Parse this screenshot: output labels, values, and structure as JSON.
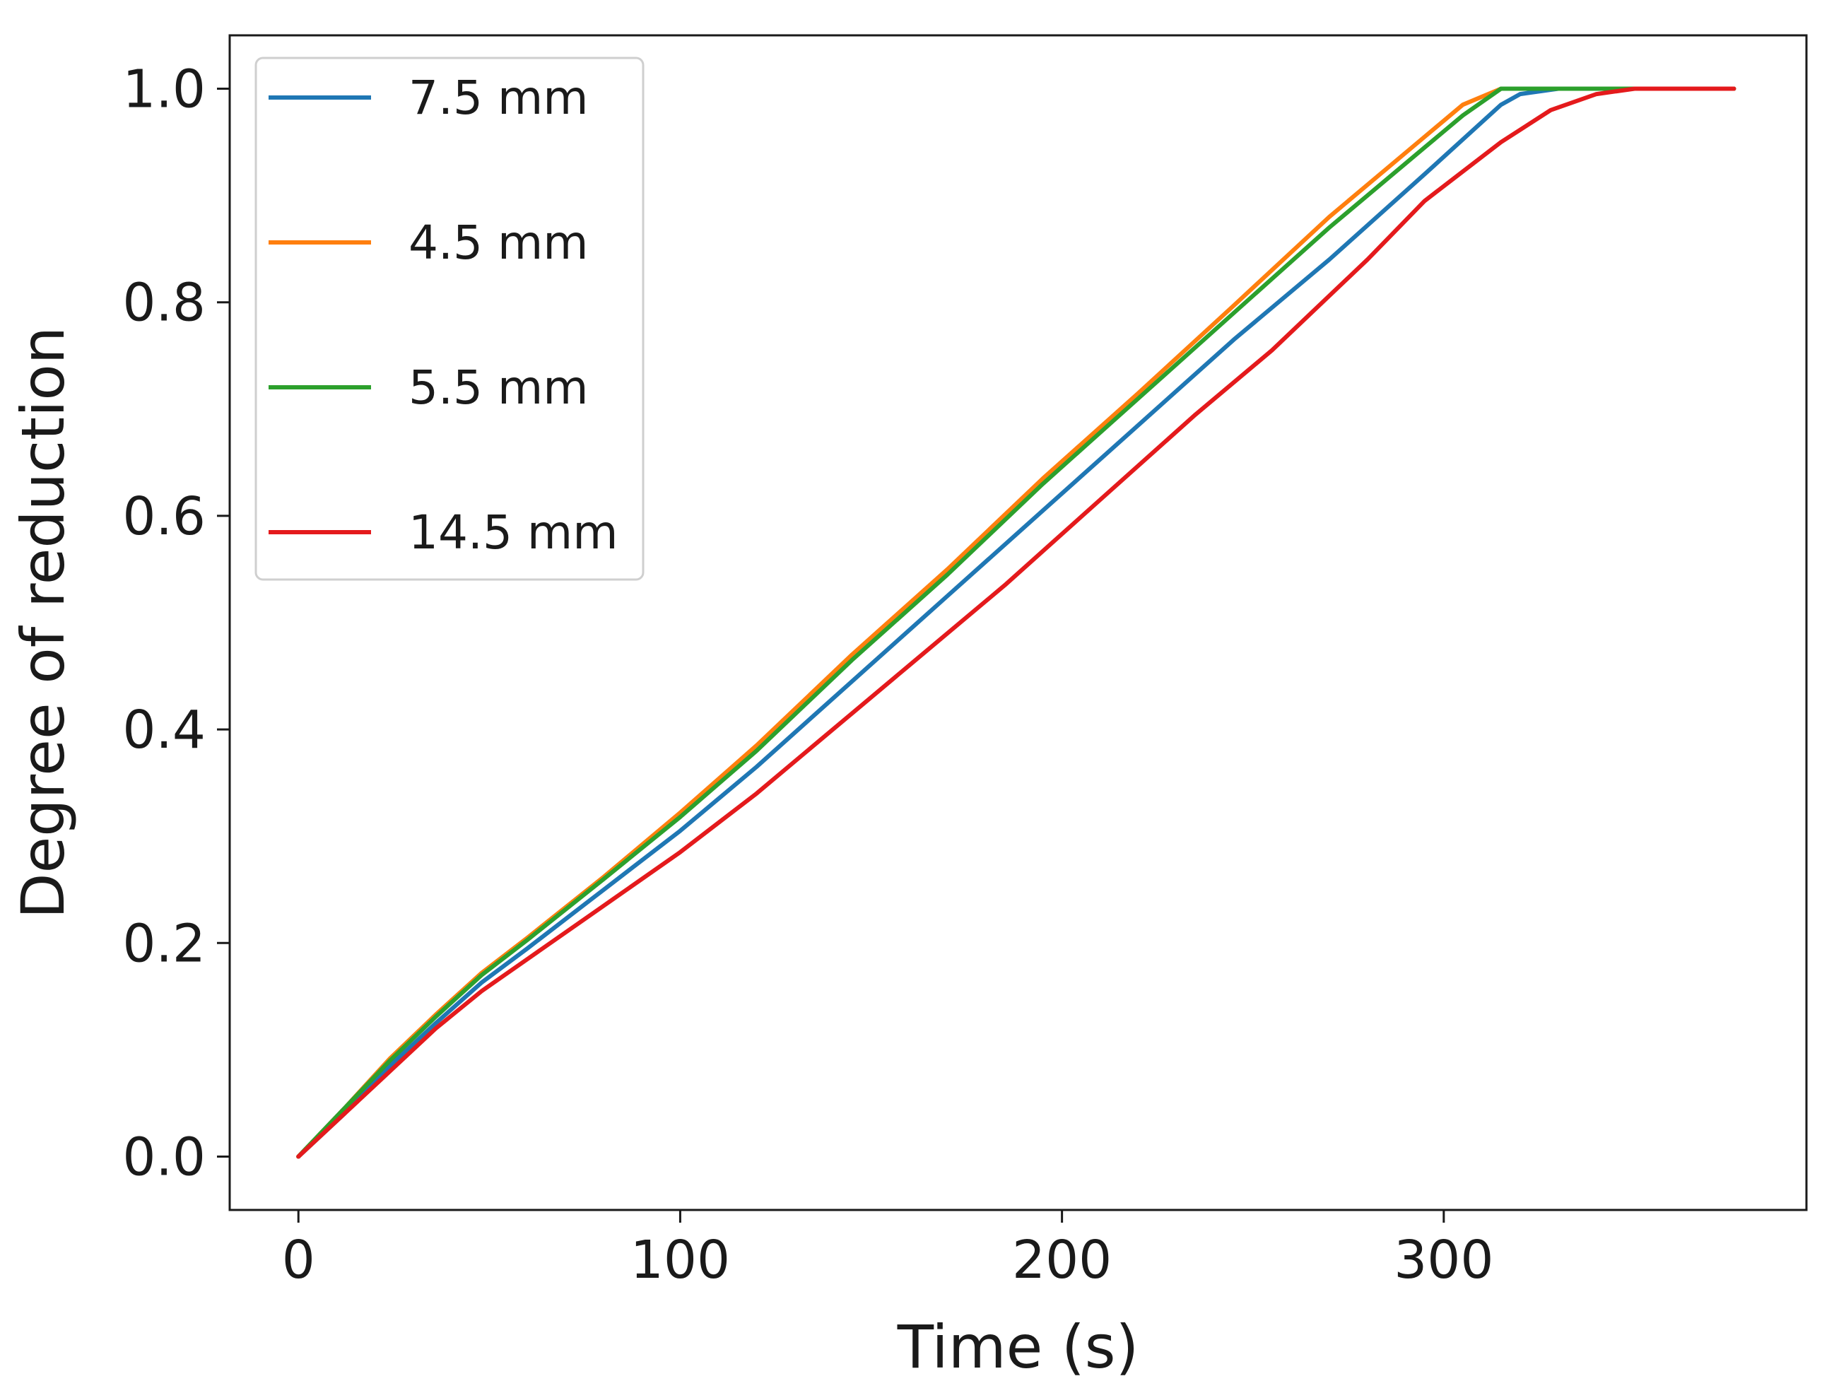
{
  "chart_data": {
    "type": "line",
    "title": "",
    "xlabel": "Time (s)",
    "ylabel": "Degree of reduction",
    "xlim": [
      -18,
      395
    ],
    "ylim": [
      -0.05,
      1.05
    ],
    "xticks": [
      0,
      100,
      200,
      300
    ],
    "xtick_labels": [
      "0",
      "100",
      "200",
      "300"
    ],
    "yticks": [
      0.0,
      0.2,
      0.4,
      0.6,
      0.8,
      1.0
    ],
    "ytick_labels": [
      "0.0",
      "0.2",
      "0.4",
      "0.6",
      "0.8",
      "1.0"
    ],
    "grid": false,
    "legend_position": "upper-left",
    "series": [
      {
        "name": "7.5 mm",
        "color": "#1f77b4",
        "x": [
          0,
          12,
          24,
          36,
          48,
          60,
          80,
          100,
          120,
          145,
          170,
          195,
          220,
          245,
          270,
          295,
          315,
          320,
          330,
          350,
          376
        ],
        "y": [
          0,
          0.04,
          0.085,
          0.125,
          0.163,
          0.195,
          0.25,
          0.305,
          0.365,
          0.445,
          0.525,
          0.605,
          0.685,
          0.765,
          0.84,
          0.92,
          0.985,
          0.995,
          1.0,
          1.0,
          1.0
        ]
      },
      {
        "name": "4.5 mm",
        "color": "#ff7f0e",
        "x": [
          0,
          12,
          24,
          36,
          48,
          60,
          80,
          100,
          120,
          145,
          170,
          195,
          220,
          245,
          270,
          295,
          305,
          315,
          330,
          350,
          376
        ],
        "y": [
          0,
          0.045,
          0.092,
          0.133,
          0.172,
          0.205,
          0.262,
          0.322,
          0.385,
          0.47,
          0.55,
          0.635,
          0.715,
          0.797,
          0.88,
          0.955,
          0.985,
          1.0,
          1.0,
          1.0,
          1.0
        ]
      },
      {
        "name": "5.5 mm",
        "color": "#2ca02c",
        "x": [
          0,
          12,
          24,
          36,
          48,
          60,
          80,
          100,
          120,
          145,
          170,
          195,
          220,
          245,
          270,
          295,
          305,
          315,
          330,
          350,
          376
        ],
        "y": [
          0,
          0.045,
          0.09,
          0.131,
          0.17,
          0.203,
          0.26,
          0.318,
          0.38,
          0.465,
          0.545,
          0.63,
          0.71,
          0.79,
          0.87,
          0.945,
          0.975,
          1.0,
          1.0,
          1.0,
          1.0
        ]
      },
      {
        "name": "14.5 mm",
        "color": "#e41a1c",
        "x": [
          0,
          12,
          24,
          36,
          48,
          60,
          80,
          100,
          120,
          145,
          160,
          185,
          210,
          235,
          255,
          280,
          295,
          315,
          328,
          340,
          350,
          376
        ],
        "y": [
          0,
          0.04,
          0.08,
          0.12,
          0.155,
          0.185,
          0.235,
          0.285,
          0.34,
          0.415,
          0.46,
          0.535,
          0.615,
          0.695,
          0.755,
          0.84,
          0.895,
          0.95,
          0.98,
          0.995,
          1.0,
          1.0
        ]
      }
    ]
  }
}
